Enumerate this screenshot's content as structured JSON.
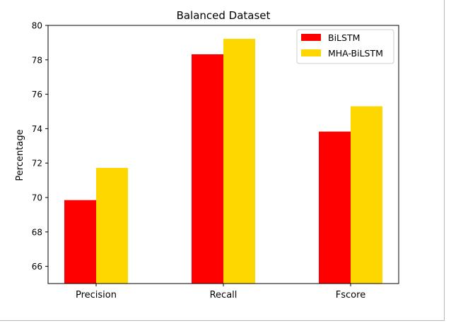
{
  "chart_data": {
    "type": "bar",
    "title": "Balanced Dataset",
    "xlabel": "",
    "ylabel": "Percentage",
    "categories": [
      "Precision",
      "Recall",
      "Fscore"
    ],
    "series": [
      {
        "name": "BiLSTM",
        "values": [
          69.85,
          78.32,
          73.83
        ],
        "color": "#ff0000"
      },
      {
        "name": "MHA-BiLSTM",
        "values": [
          71.72,
          79.22,
          75.3
        ],
        "color": "#ffd700"
      }
    ],
    "ylim": [
      65,
      80
    ],
    "yticks": [
      66,
      68,
      70,
      72,
      74,
      76,
      78,
      80
    ],
    "grid": false,
    "legend_position": "top-right"
  }
}
